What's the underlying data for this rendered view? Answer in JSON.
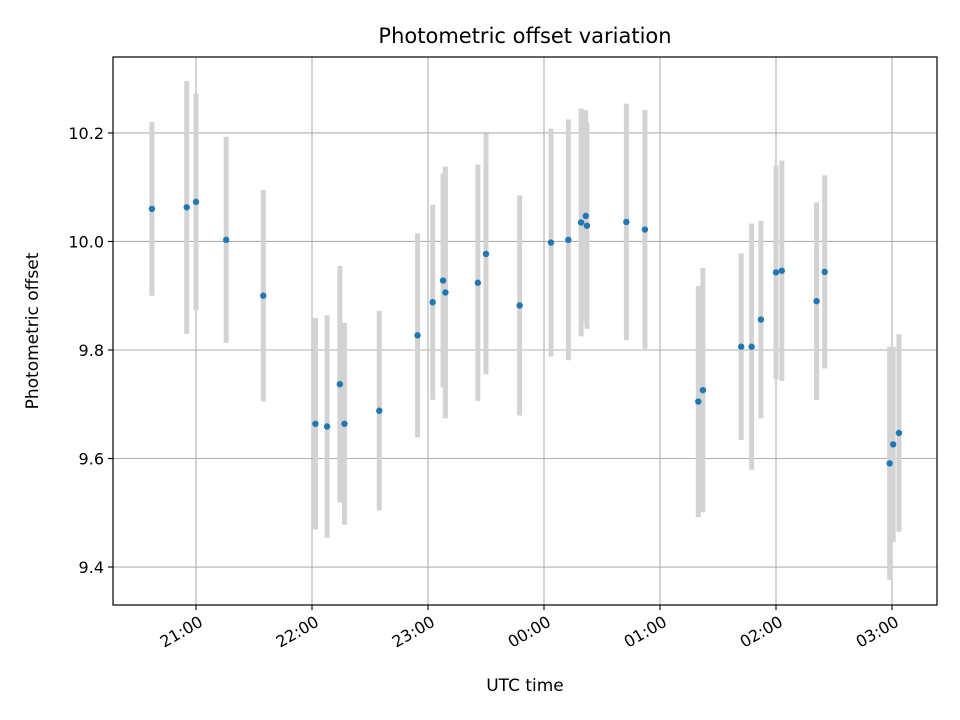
{
  "chart_data": {
    "type": "scatter",
    "title": "Photometric offset variation",
    "xlabel": "UTC time",
    "ylabel": "Photometric offset",
    "x_tick_labels": [
      "21:00",
      "22:00",
      "23:00",
      "00:00",
      "01:00",
      "02:00",
      "03:00"
    ],
    "y_tick_labels": [
      "9.4",
      "9.6",
      "9.8",
      "10.0",
      "10.2"
    ],
    "y_ticks": [
      9.4,
      9.6,
      9.8,
      10.0,
      10.2
    ],
    "ylim": [
      9.33,
      10.34
    ],
    "grid": true,
    "x_note": "x values in hours after 20:00 UTC",
    "marker_color": "#1f77b4",
    "errorbar_color": "#d3d3d3",
    "points": [
      {
        "x": 0.62,
        "y": 10.06,
        "yerr": 0.16
      },
      {
        "x": 0.92,
        "y": 10.063,
        "yerr": 0.233
      },
      {
        "x": 1.0,
        "y": 10.073,
        "yerr": 0.2
      },
      {
        "x": 1.26,
        "y": 10.003,
        "yerr": 0.19
      },
      {
        "x": 1.58,
        "y": 9.9,
        "yerr": 0.195
      },
      {
        "x": 2.03,
        "y": 9.664,
        "yerr": 0.195
      },
      {
        "x": 2.13,
        "y": 9.659,
        "yerr": 0.205
      },
      {
        "x": 2.24,
        "y": 9.737,
        "yerr": 0.218
      },
      {
        "x": 2.28,
        "y": 9.664,
        "yerr": 0.186
      },
      {
        "x": 2.58,
        "y": 9.688,
        "yerr": 0.184
      },
      {
        "x": 2.91,
        "y": 9.827,
        "yerr": 0.188
      },
      {
        "x": 3.04,
        "y": 9.888,
        "yerr": 0.18
      },
      {
        "x": 3.13,
        "y": 9.928,
        "yerr": 0.197
      },
      {
        "x": 3.15,
        "y": 9.906,
        "yerr": 0.232
      },
      {
        "x": 3.43,
        "y": 9.924,
        "yerr": 0.218
      },
      {
        "x": 3.5,
        "y": 9.977,
        "yerr": 0.222
      },
      {
        "x": 3.79,
        "y": 9.882,
        "yerr": 0.203
      },
      {
        "x": 4.06,
        "y": 9.998,
        "yerr": 0.21
      },
      {
        "x": 4.21,
        "y": 10.003,
        "yerr": 0.222
      },
      {
        "x": 4.32,
        "y": 10.035,
        "yerr": 0.21
      },
      {
        "x": 4.36,
        "y": 10.047,
        "yerr": 0.195
      },
      {
        "x": 4.37,
        "y": 10.029,
        "yerr": 0.19
      },
      {
        "x": 4.71,
        "y": 10.036,
        "yerr": 0.218
      },
      {
        "x": 4.87,
        "y": 10.022,
        "yerr": 0.22
      },
      {
        "x": 5.33,
        "y": 9.705,
        "yerr": 0.213
      },
      {
        "x": 5.37,
        "y": 9.726,
        "yerr": 0.225
      },
      {
        "x": 5.7,
        "y": 9.806,
        "yerr": 0.172
      },
      {
        "x": 5.79,
        "y": 9.806,
        "yerr": 0.227
      },
      {
        "x": 5.87,
        "y": 9.856,
        "yerr": 0.182
      },
      {
        "x": 6.0,
        "y": 9.943,
        "yerr": 0.197
      },
      {
        "x": 6.05,
        "y": 9.946,
        "yerr": 0.203
      },
      {
        "x": 6.35,
        "y": 9.89,
        "yerr": 0.182
      },
      {
        "x": 6.42,
        "y": 9.944,
        "yerr": 0.178
      },
      {
        "x": 6.98,
        "y": 9.591,
        "yerr": 0.215
      },
      {
        "x": 7.01,
        "y": 9.626,
        "yerr": 0.18
      },
      {
        "x": 7.06,
        "y": 9.647,
        "yerr": 0.182
      }
    ]
  }
}
